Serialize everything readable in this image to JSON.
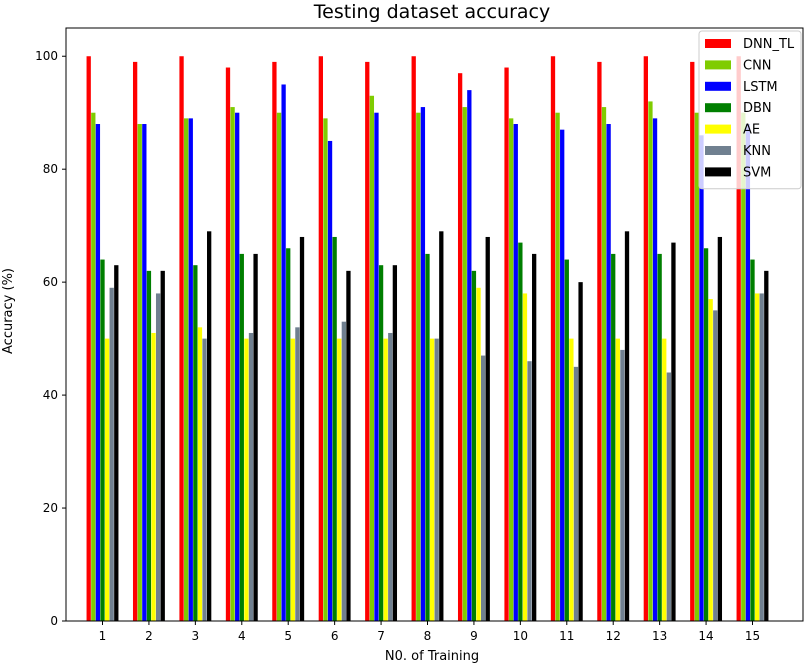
{
  "chart_data": {
    "type": "bar",
    "title": "Testing dataset accuracy",
    "xlabel": "N0. of Training",
    "ylabel": "Accuracy (%)",
    "categories": [
      "1",
      "2",
      "3",
      "4",
      "5",
      "6",
      "7",
      "8",
      "9",
      "10",
      "11",
      "12",
      "13",
      "14",
      "15"
    ],
    "ylim": [
      0,
      105
    ],
    "yticks": [
      0,
      20,
      40,
      60,
      80,
      100
    ],
    "grid": false,
    "legend_position": "top-right",
    "series": [
      {
        "name": "DNN_TL",
        "color": "#ff0000",
        "values": [
          100,
          99,
          100,
          98,
          99,
          100,
          99,
          100,
          97,
          98,
          100,
          99,
          100,
          99,
          100
        ]
      },
      {
        "name": "CNN",
        "color": "#7fcc00",
        "values": [
          90,
          88,
          89,
          91,
          90,
          89,
          93,
          90,
          91,
          89,
          90,
          91,
          92,
          90,
          90
        ]
      },
      {
        "name": "LSTM",
        "color": "#0000ff",
        "values": [
          88,
          88,
          89,
          90,
          95,
          85,
          90,
          91,
          94,
          88,
          87,
          88,
          89,
          86,
          88
        ]
      },
      {
        "name": "DBN",
        "color": "#007f00",
        "values": [
          64,
          62,
          63,
          65,
          66,
          68,
          63,
          65,
          62,
          67,
          64,
          65,
          65,
          66,
          64
        ]
      },
      {
        "name": "AE",
        "color": "#ffff00",
        "values": [
          50,
          51,
          52,
          50,
          50,
          50,
          50,
          50,
          59,
          58,
          50,
          50,
          50,
          57,
          58
        ]
      },
      {
        "name": "KNN",
        "color": "#708090",
        "values": [
          59,
          58,
          50,
          51,
          52,
          53,
          51,
          50,
          47,
          46,
          45,
          48,
          44,
          55,
          58
        ]
      },
      {
        "name": "SVM",
        "color": "#000000",
        "values": [
          63,
          62,
          69,
          65,
          68,
          62,
          63,
          69,
          68,
          65,
          60,
          69,
          67,
          68,
          62
        ]
      }
    ]
  }
}
